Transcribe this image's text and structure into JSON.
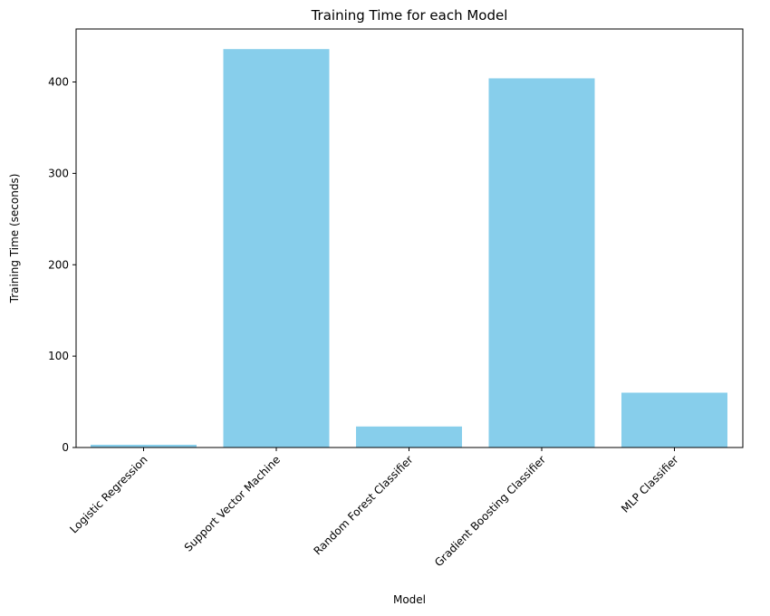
{
  "chart_data": {
    "type": "bar",
    "title": "Training Time for each Model",
    "xlabel": "Model",
    "ylabel": "Training Time (seconds)",
    "categories": [
      "Logistic Regression",
      "Support Vector Machine",
      "Random Forest Classifier",
      "Gradient Boosting Classifier",
      "MLP Classifier"
    ],
    "values": [
      3,
      436,
      23,
      404,
      60
    ],
    "ylim": [
      0,
      458
    ],
    "yticks": [
      0,
      100,
      200,
      300,
      400
    ],
    "bar_color": "#87CEEB",
    "grid": false,
    "legend": null
  }
}
